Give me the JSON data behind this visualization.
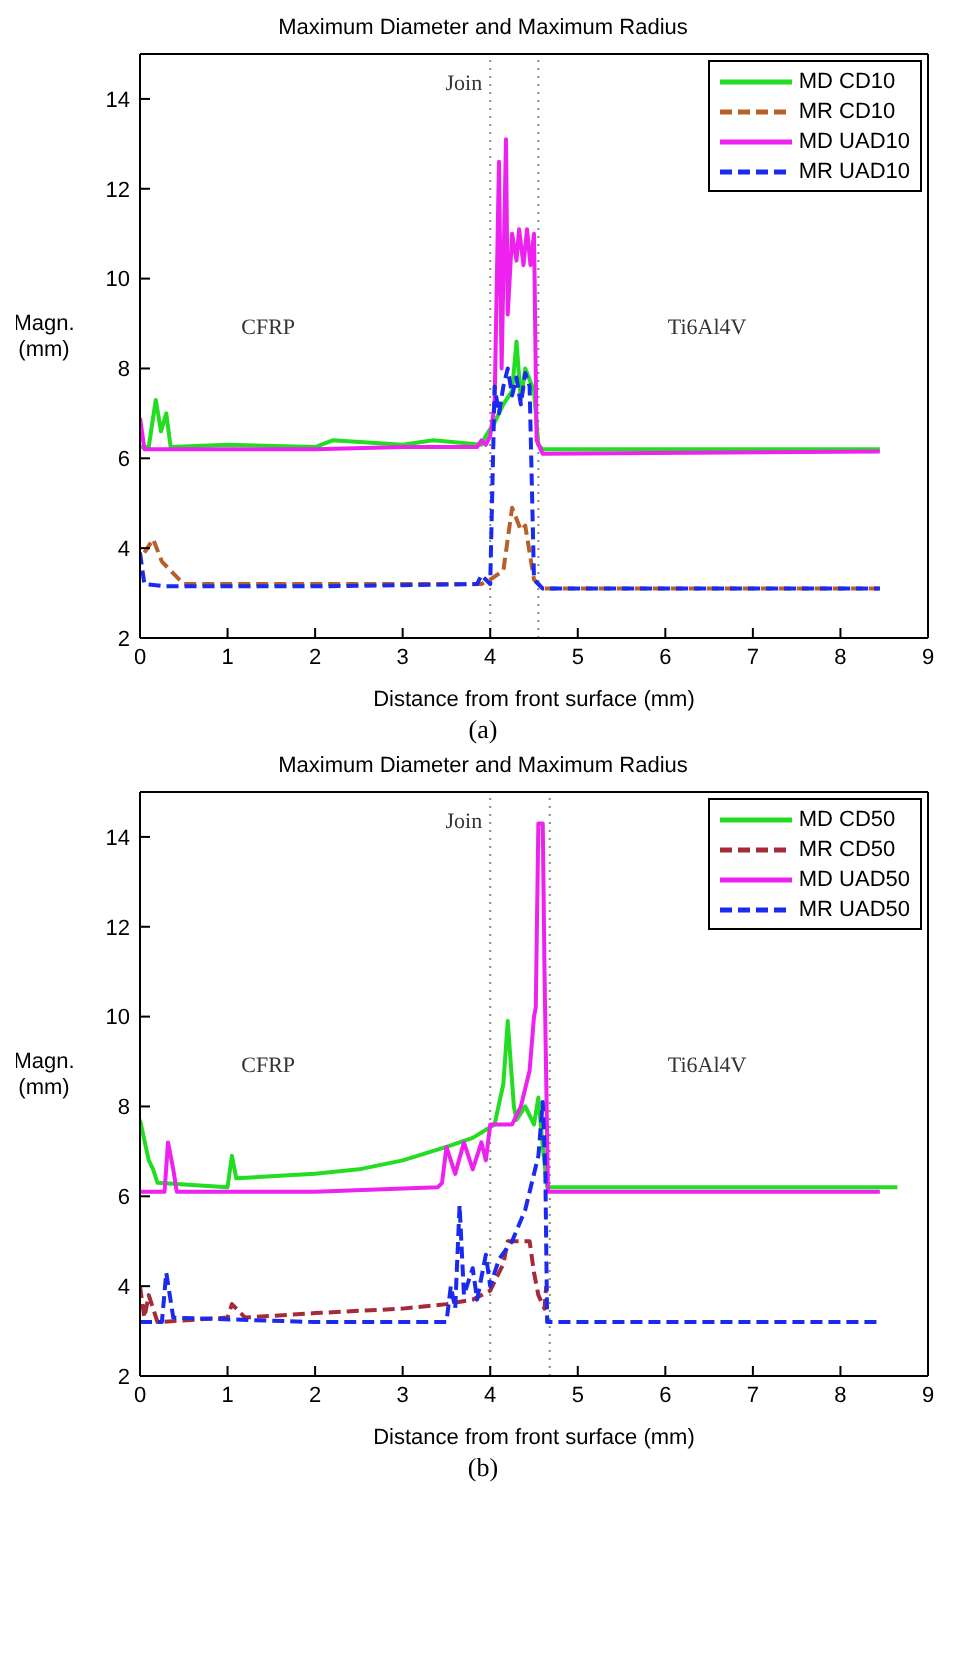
{
  "chart_data": [
    {
      "type": "line",
      "title": "Maximum Diameter and Maximum Radius",
      "xlabel": "Distance from front surface (mm)",
      "ylabel": "Magn. (mm)",
      "xlim": [
        0,
        9
      ],
      "xticks": [
        0,
        1,
        2,
        3,
        4,
        5,
        6,
        7,
        8,
        9
      ],
      "ylim": [
        2,
        15
      ],
      "yticks": [
        2,
        4,
        6,
        8,
        10,
        12,
        14
      ],
      "grid": false,
      "legend": "top right",
      "series": [
        {
          "name": "MD CD10",
          "color": "#22dd22",
          "line_style": "solid",
          "x": [
            0,
            0.1,
            0.18,
            0.24,
            0.3,
            0.35,
            1,
            2,
            2.2,
            3,
            3.35,
            3.9,
            3.95,
            4.05,
            4.15,
            4.25,
            4.3,
            4.35,
            4.4,
            4.5,
            4.55,
            4.6,
            8.45
          ],
          "values": [
            6.25,
            6.25,
            7.3,
            6.6,
            7.0,
            6.25,
            6.3,
            6.25,
            6.4,
            6.3,
            6.4,
            6.3,
            6.5,
            6.8,
            7.2,
            7.5,
            8.6,
            7.3,
            8.0,
            7.5,
            6.3,
            6.2,
            6.2
          ]
        },
        {
          "name": "MR CD10",
          "color": "#b8602a",
          "line_style": "dashed",
          "x": [
            0.05,
            0.15,
            0.25,
            0.35,
            0.5,
            2,
            3,
            3.9,
            4.0,
            4.15,
            4.25,
            4.35,
            4.4,
            4.45,
            4.5,
            4.6,
            8.45
          ],
          "values": [
            3.9,
            4.2,
            3.7,
            3.5,
            3.2,
            3.2,
            3.2,
            3.2,
            3.3,
            3.5,
            4.9,
            4.4,
            4.5,
            3.9,
            3.3,
            3.1,
            3.1
          ]
        },
        {
          "name": "MD UAD10",
          "color": "#ee22ee",
          "line_style": "solid",
          "x": [
            0,
            0.05,
            1,
            2,
            3,
            3.85,
            3.9,
            3.95,
            4.0,
            4.05,
            4.1,
            4.13,
            4.18,
            4.2,
            4.25,
            4.3,
            4.33,
            4.38,
            4.42,
            4.46,
            4.5,
            4.53,
            4.6,
            8.45
          ],
          "values": [
            6.9,
            6.2,
            6.2,
            6.2,
            6.25,
            6.25,
            6.4,
            6.3,
            6.5,
            7.2,
            12.6,
            8.0,
            13.1,
            9.2,
            11.0,
            10.4,
            11.1,
            10.3,
            11.1,
            10.3,
            11.0,
            6.4,
            6.1,
            6.15
          ]
        },
        {
          "name": "MR UAD10",
          "color": "#1a2aee",
          "line_style": "dashed",
          "x": [
            0,
            0.05,
            0.3,
            2,
            3.85,
            3.9,
            4.0,
            4.05,
            4.1,
            4.15,
            4.2,
            4.25,
            4.3,
            4.35,
            4.4,
            4.45,
            4.5,
            4.6,
            8.45
          ],
          "values": [
            3.9,
            3.2,
            3.15,
            3.15,
            3.2,
            3.4,
            3.2,
            7.6,
            7.0,
            7.6,
            8.0,
            7.4,
            7.8,
            7.2,
            7.9,
            7.6,
            3.3,
            3.1,
            3.1
          ]
        }
      ],
      "ref_lines": [
        {
          "axis": "x",
          "value": 4.0,
          "color": "#888888",
          "line_style": "dotted",
          "label": "Join"
        },
        {
          "axis": "x",
          "value": 4.55,
          "color": "#888888",
          "line_style": "dotted"
        }
      ],
      "annotations": [
        "CFRP",
        "Ti6Al4V",
        "(a)"
      ]
    },
    {
      "type": "line",
      "title": "Maximum Diameter and Maximum Radius",
      "xlabel": "Distance from front surface (mm)",
      "ylabel": "Magn. (mm)",
      "xlim": [
        0,
        9
      ],
      "xticks": [
        0,
        1,
        2,
        3,
        4,
        5,
        6,
        7,
        8,
        9
      ],
      "ylim": [
        2,
        15
      ],
      "yticks": [
        2,
        4,
        6,
        8,
        10,
        12,
        14
      ],
      "grid": false,
      "legend": "top right",
      "series": [
        {
          "name": "MD CD50",
          "color": "#22dd22",
          "line_style": "solid",
          "x": [
            0,
            0.1,
            0.15,
            0.2,
            1.0,
            1.05,
            1.1,
            2.0,
            2.5,
            3.0,
            3.5,
            3.8,
            4.05,
            4.15,
            4.2,
            4.27,
            4.3,
            4.4,
            4.5,
            4.55,
            4.6,
            4.65,
            8.65
          ],
          "values": [
            7.7,
            6.8,
            6.6,
            6.3,
            6.2,
            6.9,
            6.4,
            6.5,
            6.6,
            6.8,
            7.1,
            7.3,
            7.6,
            8.5,
            9.9,
            8.0,
            7.7,
            8.0,
            7.6,
            8.2,
            7.1,
            6.2,
            6.2
          ]
        },
        {
          "name": "MR CD50",
          "color": "#a52a3a",
          "line_style": "dashed",
          "x": [
            0,
            0.05,
            0.1,
            0.2,
            1.0,
            1.05,
            1.2,
            2.0,
            3.0,
            3.5,
            3.8,
            4.0,
            4.15,
            4.2,
            4.45,
            4.5,
            4.55,
            4.62,
            4.64
          ],
          "values": [
            4.0,
            3.3,
            3.8,
            3.2,
            3.3,
            3.6,
            3.3,
            3.4,
            3.5,
            3.6,
            3.7,
            3.9,
            4.5,
            5.0,
            5.0,
            4.3,
            3.8,
            3.5,
            4.0
          ]
        },
        {
          "name": "MD UAD50",
          "color": "#ee22ee",
          "line_style": "solid",
          "x": [
            0,
            0.28,
            0.32,
            0.38,
            0.42,
            2.0,
            3.4,
            3.45,
            3.5,
            3.6,
            3.7,
            3.8,
            3.9,
            3.95,
            4.0,
            4.25,
            4.35,
            4.45,
            4.5,
            4.52,
            4.55,
            4.6,
            4.62,
            4.66,
            8.45
          ],
          "values": [
            6.1,
            6.1,
            7.2,
            6.6,
            6.1,
            6.1,
            6.2,
            6.3,
            7.1,
            6.5,
            7.2,
            6.6,
            7.2,
            6.8,
            7.6,
            7.6,
            8.0,
            8.8,
            10.0,
            10.2,
            14.3,
            14.3,
            11.0,
            6.1,
            6.1
          ]
        },
        {
          "name": "MR UAD50",
          "color": "#1a2aee",
          "line_style": "dashed",
          "x": [
            0,
            0.25,
            0.3,
            0.38,
            2.0,
            3.5,
            3.55,
            3.6,
            3.65,
            3.7,
            3.8,
            3.85,
            3.95,
            4.0,
            4.1,
            4.25,
            4.4,
            4.55,
            4.6,
            4.63,
            4.65,
            8.45
          ],
          "values": [
            3.2,
            3.2,
            4.3,
            3.3,
            3.2,
            3.2,
            4.0,
            3.5,
            5.8,
            3.8,
            4.4,
            3.7,
            4.7,
            4.0,
            4.6,
            5.0,
            5.7,
            6.9,
            8.1,
            6.5,
            3.2,
            3.2
          ]
        }
      ],
      "ref_lines": [
        {
          "axis": "x",
          "value": 4.0,
          "color": "#888888",
          "line_style": "dotted",
          "label": "Join"
        },
        {
          "axis": "x",
          "value": 4.68,
          "color": "#888888",
          "line_style": "dotted"
        }
      ],
      "annotations": [
        "CFRP",
        "Ti6Al4V",
        "(b)"
      ]
    }
  ]
}
